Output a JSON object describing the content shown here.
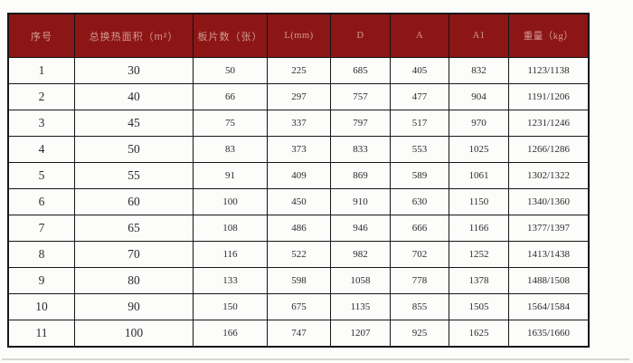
{
  "colors": {
    "header_bg": "#8c1616",
    "header_text": "#d49a95",
    "border": "#161616",
    "cell_text": "#2b2b2b",
    "page_bg": "#fcfcfb"
  },
  "table": {
    "columns": [
      "序号",
      "总换热面积（m²）",
      "板片数（张）",
      "L(mm)",
      "D",
      "A",
      "A1",
      "重量（kg）"
    ],
    "rows": [
      [
        "1",
        "30",
        "50",
        "225",
        "685",
        "405",
        "832",
        "1123/1138"
      ],
      [
        "2",
        "40",
        "66",
        "297",
        "757",
        "477",
        "904",
        "1191/1206"
      ],
      [
        "3",
        "45",
        "75",
        "337",
        "797",
        "517",
        "970",
        "1231/1246"
      ],
      [
        "4",
        "50",
        "83",
        "373",
        "833",
        "553",
        "1025",
        "1266/1286"
      ],
      [
        "5",
        "55",
        "91",
        "409",
        "869",
        "589",
        "1061",
        "1302/1322"
      ],
      [
        "6",
        "60",
        "100",
        "450",
        "910",
        "630",
        "1150",
        "1340/1360"
      ],
      [
        "7",
        "65",
        "108",
        "486",
        "946",
        "666",
        "1166",
        "1377/1397"
      ],
      [
        "8",
        "70",
        "116",
        "522",
        "982",
        "702",
        "1252",
        "1413/1438"
      ],
      [
        "9",
        "80",
        "133",
        "598",
        "1058",
        "778",
        "1378",
        "1488/1508"
      ],
      [
        "10",
        "90",
        "150",
        "675",
        "1135",
        "855",
        "1505",
        "1564/1584"
      ],
      [
        "11",
        "100",
        "166",
        "747",
        "1207",
        "925",
        "1625",
        "1635/1660"
      ]
    ]
  }
}
